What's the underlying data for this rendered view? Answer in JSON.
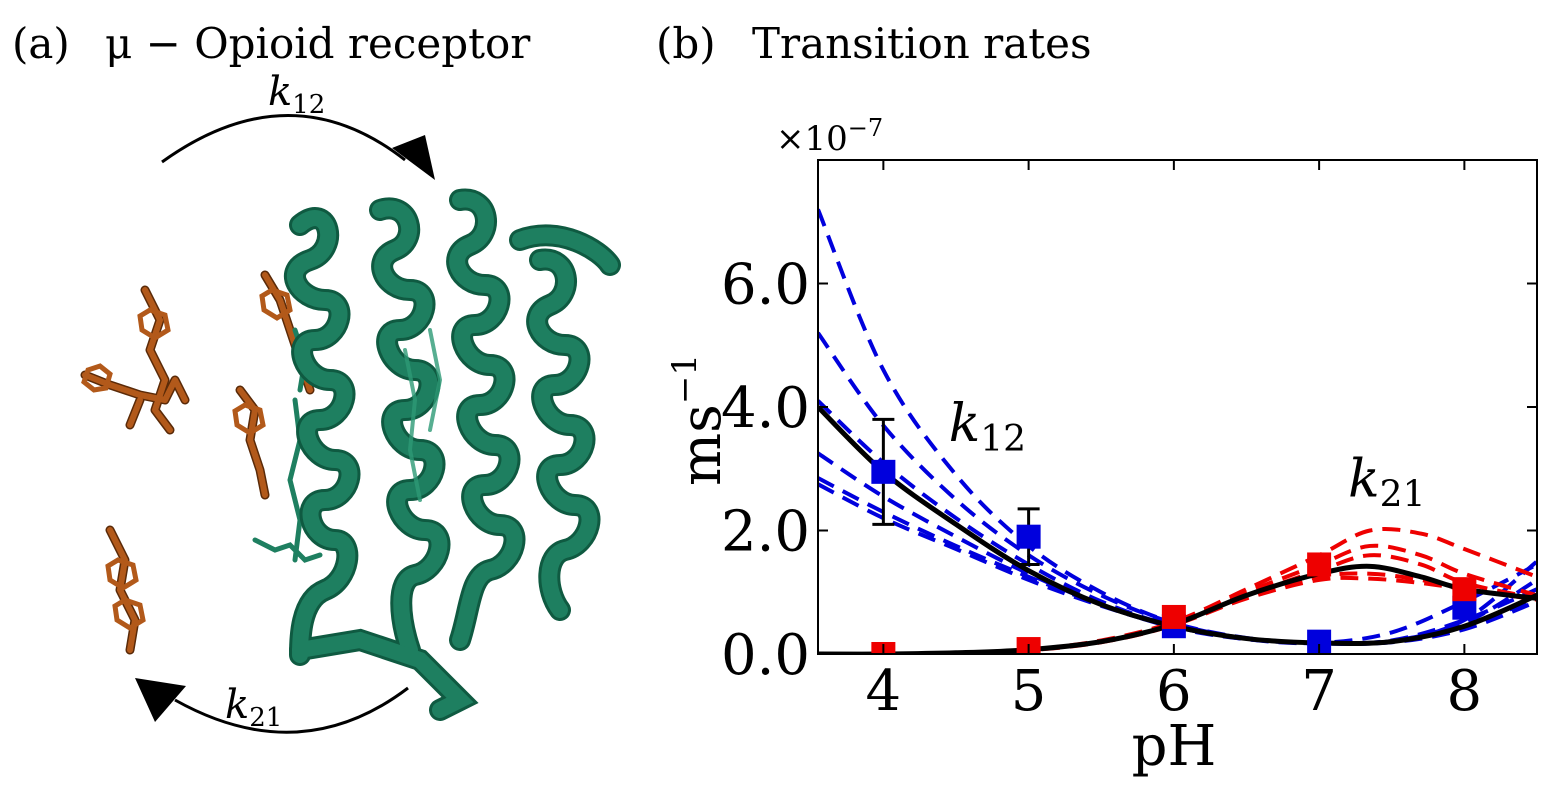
{
  "panel_a": {
    "letter": "(a)",
    "title": "μ − Opioid receptor",
    "arrow_top_label": {
      "main": "k",
      "sub": "12"
    },
    "arrow_bottom_label": {
      "main": "k",
      "sub": "21"
    },
    "colors": {
      "protein": "#1e7f60",
      "protein_dark": "#0f5a41",
      "ligand": "#b2591a",
      "ligand_dark": "#5a2a08"
    }
  },
  "panel_b": {
    "letter": "(b)",
    "title": "Transition rates"
  },
  "chart_data": {
    "type": "line",
    "xlabel": "pH",
    "ylabel": "ms",
    "ylabel_exp": "−1",
    "y_multiplier": "×10",
    "y_multiplier_exp": "−7",
    "xlim": [
      3.55,
      8.5
    ],
    "ylim": [
      0,
      8.0
    ],
    "x_ticks": [
      4,
      5,
      6,
      7,
      8
    ],
    "x_tick_labels": [
      "4",
      "5",
      "6",
      "7",
      "8"
    ],
    "y_ticks": [
      0,
      2,
      4,
      6
    ],
    "y_tick_labels": [
      "0.0",
      "2.0",
      "4.0",
      "6.0"
    ],
    "grid": false,
    "annotations": [
      {
        "main": "k",
        "sub": "12",
        "x": 4.45,
        "y": 3.45
      },
      {
        "main": "k",
        "sub": "21",
        "x": 7.2,
        "y": 2.55
      }
    ],
    "colors": {
      "k12": "#0000dd",
      "k21": "#ee0000",
      "fit": "#000000"
    },
    "k12_points": {
      "x": [
        4,
        5,
        6,
        7,
        8
      ],
      "y": [
        2.95,
        1.9,
        0.45,
        0.2,
        0.75
      ],
      "yerr": [
        0.85,
        0.45,
        0.06,
        0.05,
        0.08
      ]
    },
    "k21_points": {
      "x": [
        4,
        5,
        6,
        7,
        8
      ],
      "y": [
        0.0,
        0.08,
        0.6,
        1.45,
        1.05
      ],
      "yerr": [
        0.02,
        0.03,
        0.06,
        0.08,
        0.08
      ]
    },
    "k12_fit": {
      "x": [
        3.55,
        4.0,
        4.5,
        5.0,
        5.5,
        6.0,
        6.5,
        7.0,
        7.5,
        8.0,
        8.5
      ],
      "y": [
        4.0,
        2.95,
        2.1,
        1.35,
        0.8,
        0.45,
        0.25,
        0.18,
        0.2,
        0.45,
        0.95
      ]
    },
    "k21_fit": {
      "x": [
        3.55,
        4.0,
        4.5,
        5.0,
        5.5,
        6.0,
        6.5,
        7.0,
        7.35,
        7.7,
        8.0,
        8.5
      ],
      "y": [
        0.0,
        0.0,
        0.02,
        0.07,
        0.2,
        0.48,
        0.95,
        1.3,
        1.42,
        1.25,
        1.05,
        0.9
      ]
    },
    "k12_samples": [
      {
        "x": [
          3.55,
          4.0,
          4.5,
          5.0,
          5.5,
          6.0,
          6.5,
          7.0,
          7.5,
          8.0,
          8.5
        ],
        "y": [
          7.2,
          4.6,
          2.9,
          1.75,
          1.0,
          0.5,
          0.25,
          0.17,
          0.2,
          0.5,
          1.2
        ]
      },
      {
        "x": [
          3.55,
          4.0,
          4.5,
          5.0,
          5.5,
          6.0,
          6.5,
          7.0,
          7.5,
          8.0,
          8.5
        ],
        "y": [
          5.2,
          3.7,
          2.5,
          1.6,
          0.95,
          0.5,
          0.26,
          0.18,
          0.21,
          0.55,
          1.5
        ]
      },
      {
        "x": [
          3.55,
          4.0,
          4.5,
          5.0,
          5.5,
          6.0,
          6.5,
          7.0,
          7.5,
          8.0,
          8.5
        ],
        "y": [
          4.1,
          3.1,
          2.2,
          1.45,
          0.85,
          0.45,
          0.24,
          0.18,
          0.35,
          0.85,
          1.45
        ]
      },
      {
        "x": [
          3.55,
          4.0,
          4.5,
          5.0,
          5.5,
          6.0,
          6.5,
          7.0,
          7.5,
          8.0,
          8.5
        ],
        "y": [
          3.25,
          2.55,
          1.9,
          1.3,
          0.8,
          0.43,
          0.24,
          0.18,
          0.22,
          0.55,
          1.05
        ]
      },
      {
        "x": [
          3.55,
          4.0,
          4.5,
          5.0,
          5.5,
          6.0,
          6.5,
          7.0,
          7.5,
          8.0,
          8.5
        ],
        "y": [
          2.85,
          2.3,
          1.75,
          1.25,
          0.8,
          0.45,
          0.25,
          0.18,
          0.2,
          0.45,
          0.9
        ]
      },
      {
        "x": [
          3.55,
          4.0,
          4.5,
          5.0,
          5.5,
          6.0,
          6.5,
          7.0,
          7.5,
          8.0,
          8.5
        ],
        "y": [
          2.75,
          2.2,
          1.7,
          1.2,
          0.78,
          0.44,
          0.25,
          0.18,
          0.19,
          0.4,
          0.85
        ]
      }
    ],
    "k21_samples": [
      {
        "x": [
          3.55,
          4.0,
          4.5,
          5.0,
          5.5,
          6.0,
          6.5,
          7.0,
          7.35,
          7.7,
          8.0,
          8.5
        ],
        "y": [
          0.0,
          0.0,
          0.02,
          0.07,
          0.22,
          0.52,
          1.05,
          1.6,
          2.0,
          1.95,
          1.7,
          1.25
        ]
      },
      {
        "x": [
          3.55,
          4.0,
          4.5,
          5.0,
          5.5,
          6.0,
          6.5,
          7.0,
          7.35,
          7.7,
          8.0,
          8.5
        ],
        "y": [
          0.0,
          0.0,
          0.02,
          0.07,
          0.21,
          0.5,
          1.0,
          1.45,
          1.75,
          1.6,
          1.3,
          0.95
        ]
      },
      {
        "x": [
          3.55,
          4.0,
          4.5,
          5.0,
          5.5,
          6.0,
          6.5,
          7.0,
          7.35,
          7.7,
          8.0,
          8.5
        ],
        "y": [
          0.0,
          0.0,
          0.02,
          0.06,
          0.19,
          0.47,
          0.95,
          1.35,
          1.6,
          1.45,
          1.15,
          0.9
        ]
      },
      {
        "x": [
          3.55,
          4.0,
          4.5,
          5.0,
          5.5,
          6.0,
          6.5,
          7.0,
          7.35,
          7.7,
          8.0,
          8.5
        ],
        "y": [
          0.0,
          0.0,
          0.02,
          0.07,
          0.2,
          0.48,
          0.93,
          1.25,
          1.3,
          1.2,
          1.05,
          0.9
        ]
      },
      {
        "x": [
          3.55,
          4.0,
          4.5,
          5.0,
          5.5,
          6.0,
          6.5,
          7.0,
          7.35,
          7.7,
          8.0,
          8.5
        ],
        "y": [
          0.0,
          0.0,
          0.02,
          0.07,
          0.2,
          0.47,
          0.9,
          1.2,
          1.22,
          1.15,
          1.05,
          0.88
        ]
      }
    ]
  }
}
